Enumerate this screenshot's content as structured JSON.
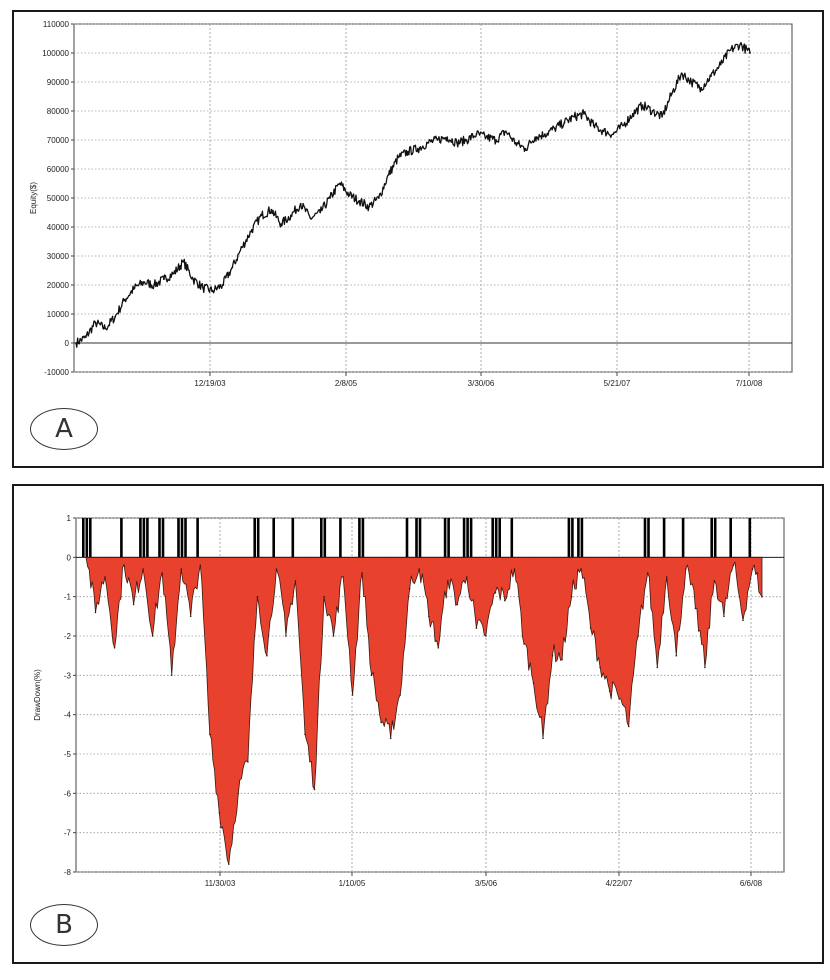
{
  "chart_data": [
    {
      "id": "A",
      "type": "line",
      "panel_label": "A",
      "title": "",
      "xlabel": "",
      "ylabel": "Equity($)",
      "ylim": [
        -10000,
        110000
      ],
      "yticks": [
        -10000,
        0,
        10000,
        20000,
        30000,
        40000,
        50000,
        60000,
        70000,
        80000,
        90000,
        100000,
        110000
      ],
      "xtick_labels": [
        "12/19/03",
        "2/8/05",
        "3/30/06",
        "5/21/07",
        "7/10/08"
      ],
      "grid": true,
      "line_color": "#111111",
      "series": [
        {
          "values": [
            0,
            2000,
            7000,
            5000,
            9000,
            15000,
            19000,
            21000,
            20000,
            22000,
            24000,
            28000,
            22000,
            19000,
            18000,
            20000,
            26000,
            33000,
            39000,
            44000,
            46000,
            41000,
            44000,
            48000,
            43000,
            45000,
            50000,
            55000,
            51000,
            49000,
            47000,
            50000,
            58000,
            64000,
            66000,
            67000,
            69000,
            70000,
            71000,
            69000,
            70000,
            72000,
            71000,
            70000,
            73000,
            69000,
            67000,
            71000,
            72000,
            74000,
            76000,
            78000,
            79000,
            75000,
            73000,
            72000,
            75000,
            79000,
            82000,
            80000,
            78000,
            86000,
            93000,
            90000,
            88000,
            92000,
            96000,
            101000,
            103000,
            100000
          ]
        }
      ]
    },
    {
      "id": "B",
      "type": "area",
      "panel_label": "B",
      "title": "",
      "xlabel": "",
      "ylabel": "DrawDown(%)",
      "ylim": [
        -8,
        1
      ],
      "yticks": [
        1,
        0,
        -1,
        -2,
        -3,
        -4,
        -5,
        -6,
        -7,
        -8
      ],
      "xtick_labels": [
        "11/30/03",
        "1/10/05",
        "3/5/06",
        "4/22/07",
        "6/6/08"
      ],
      "grid": true,
      "fill_color": "#e8412e",
      "new_high_marker_color": "#000000",
      "series": [
        {
          "values": [
            0,
            -1.4,
            -0.5,
            -2.3,
            -0.2,
            -1.2,
            -0.3,
            -2.0,
            -0.4,
            -3.0,
            -0.3,
            -1.5,
            -0.2,
            -4.5,
            -6.5,
            -7.8,
            -6.0,
            -5.2,
            -1.0,
            -2.5,
            -0.3,
            -2.0,
            -0.6,
            -4.5,
            -5.9,
            -1.0,
            -2.0,
            -0.5,
            -3.5,
            -0.4,
            -3.0,
            -4.2,
            -4.6,
            -3.5,
            -0.8,
            -0.3,
            -1.5,
            -2.3,
            -0.6,
            -1.2,
            -0.5,
            -1.8,
            -2.0,
            -0.9,
            -1.1,
            -0.3,
            -2.2,
            -3.2,
            -4.6,
            -2.5,
            -2.6,
            -1.0,
            -0.3,
            -1.8,
            -2.8,
            -3.4,
            -3.6,
            -4.3,
            -2.0,
            -0.4,
            -2.8,
            -0.5,
            -2.5,
            -0.3,
            -1.3,
            -2.8,
            -0.6,
            -1.5,
            -0.2,
            -1.6,
            -0.3,
            -1.0
          ]
        }
      ],
      "new_high_flags": [
        1,
        0,
        0,
        0,
        1,
        0,
        1,
        0,
        1,
        0,
        1,
        0,
        1,
        0,
        0,
        0,
        0,
        0,
        1,
        0,
        1,
        0,
        1,
        0,
        0,
        1,
        0,
        1,
        0,
        1,
        0,
        0,
        0,
        0,
        1,
        1,
        0,
        0,
        1,
        0,
        1,
        0,
        0,
        1,
        0,
        1,
        0,
        0,
        0,
        0,
        0,
        1,
        1,
        0,
        0,
        0,
        0,
        0,
        0,
        1,
        0,
        1,
        0,
        1,
        0,
        0,
        1,
        0,
        1,
        0,
        1,
        0
      ]
    }
  ]
}
